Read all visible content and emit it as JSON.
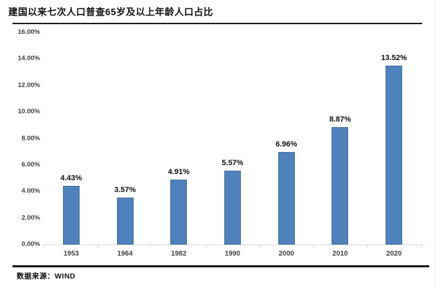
{
  "page": {
    "title": "建国以来七次人口普查65岁及以上年龄人口占比",
    "source_label": "数据来源：WIND"
  },
  "chart_data": {
    "type": "bar",
    "title": "建国以来七次人口普查65岁及以上年龄人口占比",
    "categories": [
      "1953",
      "1964",
      "1982",
      "1990",
      "2000",
      "2010",
      "2020"
    ],
    "values": [
      4.43,
      3.57,
      4.91,
      5.57,
      6.96,
      8.87,
      13.52
    ],
    "value_labels": [
      "4.43%",
      "3.57%",
      "4.91%",
      "5.57%",
      "6.96%",
      "8.87%",
      "13.52%"
    ],
    "y_ticks": [
      "0.00%",
      "2.00%",
      "4.00%",
      "6.00%",
      "8.00%",
      "10.00%",
      "12.00%",
      "14.00%",
      "16.00%"
    ],
    "y_tick_values": [
      0,
      2,
      4,
      6,
      8,
      10,
      12,
      14,
      16
    ],
    "ylim": [
      0,
      16
    ],
    "xlabel": "",
    "ylabel": "",
    "grid": false,
    "legend": false,
    "source": "数据来源：WIND",
    "bar_color": "#4f81bd"
  },
  "colors": {
    "bar": "#4f81bd",
    "bar_border": "#41719c",
    "axis": "#d9d9d9",
    "tick_text": "#3f3f3f",
    "rule": "#111111",
    "background": "#ffffff"
  }
}
